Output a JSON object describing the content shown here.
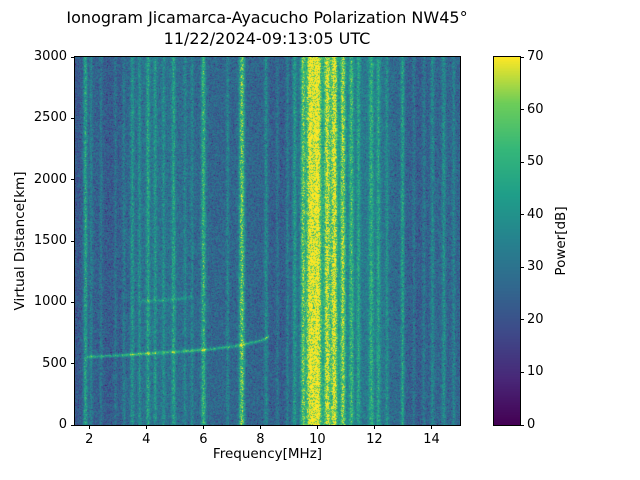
{
  "figure": {
    "background": "#ffffff"
  },
  "chart_data": {
    "type": "heatmap",
    "title": "Ionogram Jicamarca-Ayacucho Polarization NW45°",
    "subtitle": "11/22/2024-09:13:05 UTC",
    "xlabel": "Frequency[MHz]",
    "ylabel": "Virtual Distance[km]",
    "colorbar_label": "Power[dB]",
    "x_range": [
      1.5,
      15.0
    ],
    "y_range": [
      0,
      3000
    ],
    "clim": [
      0,
      70
    ],
    "x_ticks": [
      2,
      4,
      6,
      8,
      10,
      12,
      14
    ],
    "y_ticks": [
      0,
      500,
      1000,
      1500,
      2000,
      2500,
      3000
    ],
    "colorbar_ticks": [
      0,
      10,
      20,
      30,
      40,
      50,
      60,
      70
    ],
    "colormap": "viridis",
    "colormap_stops": [
      [
        0.0,
        68,
        1,
        84
      ],
      [
        0.125,
        72,
        40,
        120
      ],
      [
        0.25,
        62,
        74,
        137
      ],
      [
        0.375,
        49,
        104,
        142
      ],
      [
        0.5,
        38,
        130,
        142
      ],
      [
        0.625,
        31,
        158,
        137
      ],
      [
        0.75,
        53,
        183,
        121
      ],
      [
        0.875,
        109,
        205,
        89
      ],
      [
        1.0,
        253,
        231,
        37
      ]
    ],
    "noise_floor_db": 18,
    "noise_spread_db": 16,
    "rfi_stripes": [
      {
        "freq_mhz": 1.85,
        "power_db": 20,
        "sigma_mhz": 0.05
      },
      {
        "freq_mhz": 2.05,
        "power_db": 9,
        "sigma_mhz": 0.04
      },
      {
        "freq_mhz": 2.4,
        "power_db": 8,
        "sigma_mhz": 0.04
      },
      {
        "freq_mhz": 2.9,
        "power_db": 7,
        "sigma_mhz": 0.04
      },
      {
        "freq_mhz": 3.2,
        "power_db": 8,
        "sigma_mhz": 0.04
      },
      {
        "freq_mhz": 3.5,
        "power_db": 14,
        "sigma_mhz": 0.05
      },
      {
        "freq_mhz": 3.75,
        "power_db": 11,
        "sigma_mhz": 0.04
      },
      {
        "freq_mhz": 4.05,
        "power_db": 16,
        "sigma_mhz": 0.05
      },
      {
        "freq_mhz": 4.3,
        "power_db": 12,
        "sigma_mhz": 0.04
      },
      {
        "freq_mhz": 4.6,
        "power_db": 9,
        "sigma_mhz": 0.04
      },
      {
        "freq_mhz": 4.95,
        "power_db": 16,
        "sigma_mhz": 0.05
      },
      {
        "freq_mhz": 5.35,
        "power_db": 8,
        "sigma_mhz": 0.04
      },
      {
        "freq_mhz": 5.6,
        "power_db": 8,
        "sigma_mhz": 0.04
      },
      {
        "freq_mhz": 6.0,
        "power_db": 24,
        "sigma_mhz": 0.06
      },
      {
        "freq_mhz": 6.85,
        "power_db": 10,
        "sigma_mhz": 0.04
      },
      {
        "freq_mhz": 7.35,
        "power_db": 32,
        "sigma_mhz": 0.07
      },
      {
        "freq_mhz": 8.2,
        "power_db": 12,
        "sigma_mhz": 0.05
      },
      {
        "freq_mhz": 8.6,
        "power_db": 8,
        "sigma_mhz": 0.04
      },
      {
        "freq_mhz": 8.95,
        "power_db": 9,
        "sigma_mhz": 0.04
      },
      {
        "freq_mhz": 9.2,
        "power_db": 14,
        "sigma_mhz": 0.05
      },
      {
        "freq_mhz": 9.5,
        "power_db": 26,
        "sigma_mhz": 0.06
      },
      {
        "freq_mhz": 9.75,
        "power_db": 40,
        "sigma_mhz": 0.09
      },
      {
        "freq_mhz": 10.0,
        "power_db": 42,
        "sigma_mhz": 0.1
      },
      {
        "freq_mhz": 10.35,
        "power_db": 32,
        "sigma_mhz": 0.08
      },
      {
        "freq_mhz": 10.6,
        "power_db": 36,
        "sigma_mhz": 0.08
      },
      {
        "freq_mhz": 10.9,
        "power_db": 30,
        "sigma_mhz": 0.07
      },
      {
        "freq_mhz": 11.2,
        "power_db": 20,
        "sigma_mhz": 0.06
      },
      {
        "freq_mhz": 11.45,
        "power_db": 14,
        "sigma_mhz": 0.05
      },
      {
        "freq_mhz": 11.9,
        "power_db": 17,
        "sigma_mhz": 0.06
      },
      {
        "freq_mhz": 12.15,
        "power_db": 15,
        "sigma_mhz": 0.05
      },
      {
        "freq_mhz": 12.45,
        "power_db": 10,
        "sigma_mhz": 0.04
      },
      {
        "freq_mhz": 13.0,
        "power_db": 18,
        "sigma_mhz": 0.05
      },
      {
        "freq_mhz": 13.4,
        "power_db": 8,
        "sigma_mhz": 0.04
      },
      {
        "freq_mhz": 13.75,
        "power_db": 8,
        "sigma_mhz": 0.04
      },
      {
        "freq_mhz": 14.05,
        "power_db": 11,
        "sigma_mhz": 0.05
      },
      {
        "freq_mhz": 14.45,
        "power_db": 13,
        "sigma_mhz": 0.05
      },
      {
        "freq_mhz": 14.8,
        "power_db": 9,
        "sigma_mhz": 0.04
      }
    ],
    "broad_bands": [
      {
        "center": 10.2,
        "sigma": 0.85,
        "power": 10
      },
      {
        "center": 12.0,
        "sigma": 0.5,
        "power": 5
      },
      {
        "center": 4.4,
        "sigma": 0.8,
        "power": 4
      },
      {
        "center": 8.8,
        "sigma": 0.4,
        "power": -5
      },
      {
        "center": 2.8,
        "sigma": 0.4,
        "power": -4
      },
      {
        "center": 13.5,
        "sigma": 0.3,
        "power": -3
      },
      {
        "center": 1.55,
        "sigma": 0.15,
        "power": -4
      }
    ],
    "echo_trace": {
      "label": "ionospheric echo trace",
      "points_mhz_km": [
        [
          1.9,
          552
        ],
        [
          2.5,
          558
        ],
        [
          3.0,
          564
        ],
        [
          3.5,
          571
        ],
        [
          4.0,
          579
        ],
        [
          4.5,
          587
        ],
        [
          5.0,
          594
        ],
        [
          5.5,
          601
        ],
        [
          6.0,
          610
        ],
        [
          6.5,
          622
        ],
        [
          7.0,
          637
        ],
        [
          7.5,
          657
        ],
        [
          7.9,
          678
        ],
        [
          8.15,
          698
        ],
        [
          8.3,
          718
        ]
      ],
      "power_db": 24,
      "sigma_km": 9
    },
    "second_echo": {
      "label": "faint second echo",
      "points_mhz_km": [
        [
          3.8,
          1008
        ],
        [
          4.4,
          1014
        ],
        [
          5.0,
          1024
        ],
        [
          5.6,
          1040
        ]
      ],
      "power_db": 11,
      "sigma_km": 12
    }
  }
}
